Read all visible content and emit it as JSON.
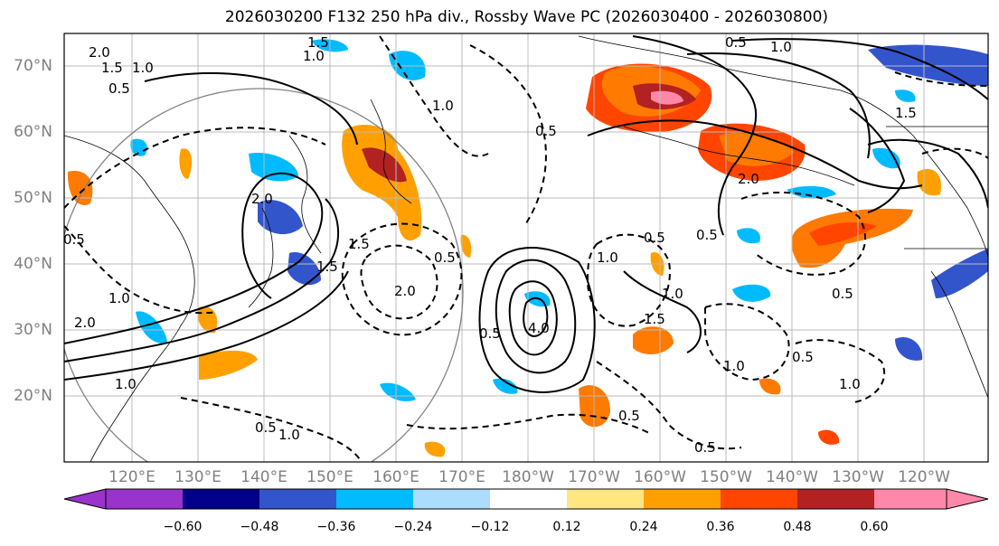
{
  "title": "2026030200 F132 250 hPa div., Rossby Wave PC (2026030400 - 2026030800)",
  "lat_labels": [
    "70°N",
    "60°N",
    "50°N",
    "40°N",
    "30°N",
    "20°N"
  ],
  "lon_labels": [
    "120°E",
    "130°E",
    "140°E",
    "150°E",
    "160°E",
    "170°E",
    "180°W",
    "170°W",
    "160°W",
    "150°W",
    "140°W",
    "130°W",
    "120°W"
  ],
  "colorbar": {
    "ticks": [
      "−0.60",
      "−0.48",
      "−0.36",
      "−0.24",
      "−0.12",
      "0.12",
      "0.24",
      "0.36",
      "0.48",
      "0.60"
    ],
    "colors": [
      "#9933cc",
      "#000088",
      "#3355cc",
      "#00bbff",
      "#aaddff",
      "#ffffff",
      "#ffe680",
      "#ffa000",
      "#ff4500",
      "#b22222",
      "#ff88aa"
    ]
  },
  "contour_labels": [
    "2.0",
    "1.5",
    "1.0",
    "0.5",
    "1.5",
    "1.0",
    "0.5",
    "1.0",
    "0.5",
    "1.0",
    "1.5",
    "2.0",
    "0.5",
    "2.0",
    "1.0",
    "1.5",
    "4.0",
    "0.5",
    "1.0",
    "1.0",
    "1.5",
    "0.5",
    "0.5",
    "1.0",
    "0.5",
    "0.5",
    "0.5",
    "1.0",
    "2.0",
    "0.5",
    "0.5",
    "1.0",
    "0.5",
    "1.0",
    "2.0",
    "1.5"
  ]
}
